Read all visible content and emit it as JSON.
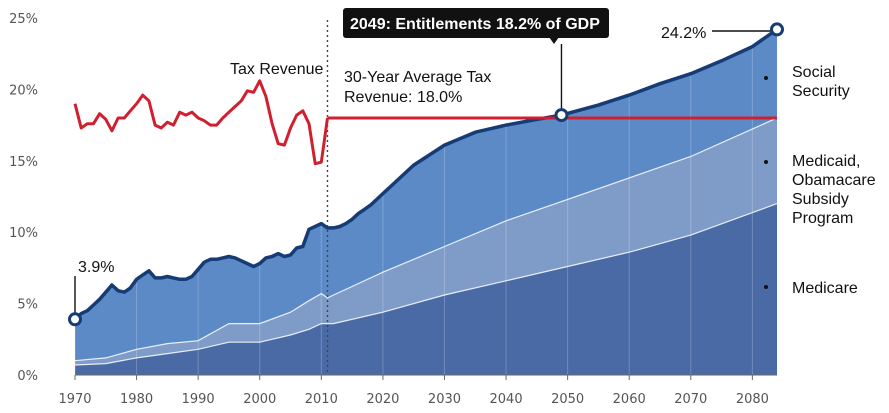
{
  "chart_data": {
    "type": "area",
    "x_range": [
      1970,
      2084
    ],
    "ylim": [
      0,
      25
    ],
    "x_ticks": [
      "1970",
      "1980",
      "1990",
      "2000",
      "2010",
      "2020",
      "2030",
      "2040",
      "2050",
      "2060",
      "2070",
      "2080"
    ],
    "y_ticks": [
      "0%",
      "5%",
      "10%",
      "15%",
      "20%",
      "25%"
    ],
    "grid": "vertical",
    "projection_start": 2011,
    "series": [
      {
        "name": "Medicare",
        "color": "#4a6aa5",
        "x": [
          1970,
          1975,
          1980,
          1985,
          1990,
          1995,
          2000,
          2005,
          2008,
          2010,
          2011,
          2012,
          2020,
          2030,
          2040,
          2050,
          2060,
          2070,
          2084
        ],
        "y": [
          0.7,
          0.8,
          1.2,
          1.5,
          1.8,
          2.3,
          2.3,
          2.8,
          3.2,
          3.6,
          3.6,
          3.6,
          4.4,
          5.6,
          6.6,
          7.6,
          8.6,
          9.8,
          12.0
        ]
      },
      {
        "name": "Medicaid, Obamacare Subsidy Program",
        "color": "#7f9cc9",
        "x": [
          1970,
          1975,
          1980,
          1985,
          1990,
          1995,
          2000,
          2005,
          2008,
          2010,
          2011,
          2012,
          2020,
          2030,
          2040,
          2050,
          2060,
          2070,
          2084
        ],
        "y": [
          1.0,
          1.2,
          1.8,
          2.2,
          2.4,
          3.6,
          3.6,
          4.4,
          5.2,
          5.7,
          5.4,
          5.6,
          7.2,
          9.0,
          10.8,
          12.3,
          13.8,
          15.3,
          18.0
        ]
      },
      {
        "name": "Social Security",
        "color": "#5b8ac7",
        "x": [
          1970,
          1971,
          1972,
          1973,
          1974,
          1975,
          1976,
          1977,
          1978,
          1979,
          1980,
          1981,
          1982,
          1983,
          1984,
          1985,
          1986,
          1987,
          1988,
          1989,
          1990,
          1991,
          1992,
          1993,
          1994,
          1995,
          1996,
          1997,
          1998,
          1999,
          2000,
          2001,
          2002,
          2003,
          2004,
          2005,
          2006,
          2007,
          2008,
          2009,
          2010,
          2011,
          2012,
          2013,
          2014,
          2015,
          2016,
          2017,
          2018,
          2020,
          2025,
          2030,
          2035,
          2040,
          2045,
          2049,
          2055,
          2060,
          2065,
          2070,
          2075,
          2080,
          2084
        ],
        "y": [
          3.9,
          4.3,
          4.5,
          4.9,
          5.3,
          5.8,
          6.3,
          5.9,
          5.8,
          6.1,
          6.7,
          7.0,
          7.3,
          6.8,
          6.8,
          6.9,
          6.8,
          6.7,
          6.7,
          6.9,
          7.4,
          7.9,
          8.1,
          8.1,
          8.2,
          8.3,
          8.2,
          8.0,
          7.8,
          7.6,
          7.8,
          8.2,
          8.3,
          8.5,
          8.3,
          8.4,
          8.9,
          9.0,
          10.2,
          10.4,
          10.6,
          10.3,
          10.3,
          10.4,
          10.6,
          10.9,
          11.3,
          11.6,
          11.9,
          12.7,
          14.7,
          16.1,
          17.0,
          17.5,
          17.9,
          18.2,
          18.9,
          19.6,
          20.4,
          21.1,
          22.0,
          23.0,
          24.2
        ]
      },
      {
        "name": "Tax Revenue",
        "color": "#d02030",
        "x": [
          1970,
          1971,
          1972,
          1973,
          1974,
          1975,
          1976,
          1977,
          1978,
          1979,
          1980,
          1981,
          1982,
          1983,
          1984,
          1985,
          1986,
          1987,
          1988,
          1989,
          1990,
          1991,
          1992,
          1993,
          1994,
          1995,
          1996,
          1997,
          1998,
          1999,
          2000,
          2001,
          2002,
          2003,
          2004,
          2005,
          2006,
          2007,
          2008,
          2009,
          2010,
          2011
        ],
        "y": [
          19.0,
          17.3,
          17.6,
          17.6,
          18.3,
          17.9,
          17.1,
          18.0,
          18.0,
          18.5,
          19.0,
          19.6,
          19.2,
          17.5,
          17.3,
          17.7,
          17.5,
          18.4,
          18.2,
          18.4,
          18.0,
          17.8,
          17.5,
          17.5,
          18.0,
          18.4,
          18.8,
          19.2,
          19.9,
          19.8,
          20.6,
          19.5,
          17.6,
          16.2,
          16.1,
          17.3,
          18.2,
          18.5,
          17.6,
          14.8,
          14.9,
          18.0
        ]
      }
    ],
    "average_line": {
      "x_from": 2011,
      "x_to": 2084,
      "y": 18.0,
      "color": "#d02030"
    },
    "points": [
      {
        "x": 1970,
        "y": 3.9,
        "label": "3.9%"
      },
      {
        "x": 2049,
        "y": 18.2,
        "label": "2049: Entitlements 18.2% of GDP"
      },
      {
        "x": 2084,
        "y": 24.2,
        "label": "24.2%"
      }
    ],
    "annotations": {
      "tax_revenue": "Tax Revenue",
      "average_line1": "30-Year Average Tax",
      "average_line2": "Revenue: 18.0%"
    },
    "legend_labels": {
      "social_security": [
        "Social",
        "Security"
      ],
      "medicaid": [
        "Medicaid,",
        "Obamacare",
        "Subsidy",
        "Program"
      ],
      "medicare": [
        "Medicare"
      ]
    }
  }
}
